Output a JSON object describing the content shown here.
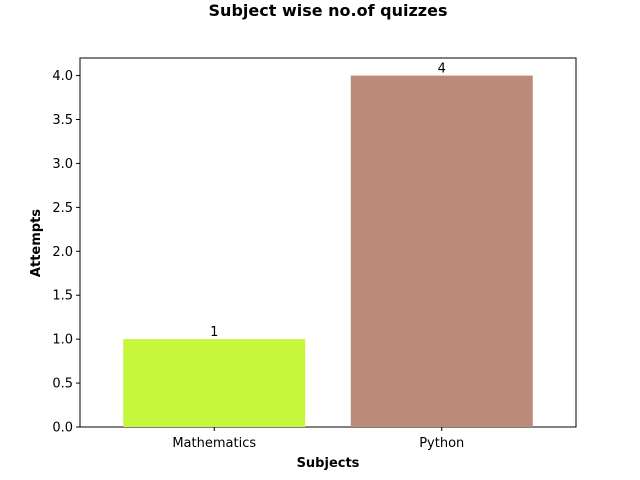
{
  "chart_data": {
    "type": "bar",
    "title": "Subject wise no.of quizzes",
    "xlabel": "Subjects",
    "ylabel": "Attempts",
    "categories": [
      "Mathematics",
      "Python"
    ],
    "values": [
      1,
      4
    ],
    "data_labels": [
      "1",
      "4"
    ],
    "bar_colors": [
      "#c6f73d",
      "#bc8a79"
    ],
    "ylim": [
      0,
      4.2
    ],
    "yticks": [
      0.0,
      0.5,
      1.0,
      1.5,
      2.0,
      2.5,
      3.0,
      3.5,
      4.0
    ],
    "ytick_labels": [
      "0.0",
      "0.5",
      "1.0",
      "1.5",
      "2.0",
      "2.5",
      "3.0",
      "3.5",
      "4.0"
    ],
    "grid": false,
    "legend": "none"
  }
}
